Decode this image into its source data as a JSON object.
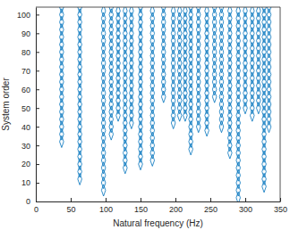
{
  "chart_data": {
    "type": "scatter",
    "xlabel": "Natural frequency (Hz)",
    "ylabel": "System order",
    "color": "#0072bd",
    "marker": "diamond",
    "xlim": [
      0,
      350
    ],
    "xticks": [
      0,
      50,
      100,
      150,
      200,
      250,
      300,
      350
    ],
    "ylim": [
      0,
      104
    ],
    "yticks": [
      0,
      10,
      20,
      30,
      40,
      50,
      60,
      70,
      80,
      90,
      100
    ],
    "x": [
      37,
      37,
      37,
      37,
      37,
      37,
      37,
      37,
      37,
      37,
      37,
      37,
      37,
      37,
      37,
      37,
      37,
      37,
      37,
      63,
      63,
      63,
      63,
      63,
      63,
      63,
      63,
      63,
      63,
      63,
      63,
      63,
      63,
      63,
      63,
      63,
      63,
      63,
      63,
      63,
      63,
      63,
      63,
      97,
      97,
      97,
      97,
      97,
      97,
      97,
      97,
      97,
      97,
      97,
      97,
      97,
      97,
      97,
      97,
      97,
      97,
      97,
      97,
      97,
      97,
      97,
      97,
      97,
      108,
      108,
      108,
      108,
      108,
      108,
      108,
      108,
      108,
      108,
      108,
      108,
      108,
      108,
      108,
      108,
      108,
      108,
      118,
      118,
      118,
      118,
      118,
      118,
      118,
      118,
      118,
      118,
      118,
      118,
      118,
      118,
      118,
      128,
      128,
      128,
      128,
      128,
      128,
      128,
      128,
      128,
      128,
      128,
      128,
      128,
      128,
      128,
      128,
      128,
      128,
      128,
      128,
      128,
      128,
      137,
      137,
      137,
      137,
      137,
      137,
      137,
      137,
      137,
      137,
      137,
      137,
      137,
      137,
      137,
      137,
      150,
      150,
      150,
      150,
      150,
      150,
      150,
      150,
      150,
      150,
      150,
      150,
      150,
      150,
      150,
      150,
      150,
      150,
      150,
      150,
      150,
      150,
      167,
      167,
      167,
      167,
      167,
      167,
      167,
      167,
      167,
      167,
      167,
      167,
      167,
      167,
      167,
      167,
      167,
      167,
      167,
      167,
      167,
      183,
      183,
      183,
      183,
      183,
      183,
      183,
      183,
      183,
      183,
      183,
      183,
      183,
      197,
      197,
      197,
      197,
      197,
      197,
      197,
      197,
      197,
      197,
      197,
      197,
      197,
      197,
      197,
      197,
      206,
      206,
      206,
      206,
      206,
      206,
      206,
      206,
      206,
      206,
      206,
      206,
      206,
      206,
      206,
      214,
      214,
      214,
      214,
      214,
      214,
      214,
      214,
      214,
      214,
      214,
      214,
      214,
      214,
      214,
      222,
      222,
      222,
      222,
      222,
      222,
      222,
      222,
      222,
      222,
      222,
      222,
      222,
      222,
      222,
      222,
      222,
      222,
      222,
      222,
      233,
      233,
      233,
      233,
      233,
      233,
      233,
      233,
      233,
      233,
      233,
      233,
      233,
      233,
      233,
      233,
      233,
      245,
      245,
      245,
      245,
      245,
      245,
      245,
      245,
      245,
      245,
      245,
      245,
      245,
      245,
      245,
      245,
      245,
      256,
      256,
      256,
      256,
      256,
      256,
      256,
      256,
      256,
      256,
      256,
      256,
      256,
      266,
      266,
      266,
      266,
      266,
      266,
      266,
      266,
      266,
      266,
      266,
      266,
      266,
      266,
      266,
      266,
      266,
      278,
      278,
      278,
      278,
      278,
      278,
      278,
      278,
      278,
      278,
      278,
      278,
      278,
      278,
      278,
      278,
      278,
      278,
      278,
      278,
      290,
      290,
      290,
      290,
      290,
      290,
      290,
      290,
      290,
      290,
      290,
      290,
      290,
      290,
      290,
      290,
      290,
      290,
      290,
      290,
      290,
      290,
      290,
      290,
      290,
      290,
      300,
      300,
      300,
      300,
      300,
      300,
      300,
      300,
      300,
      300,
      300,
      300,
      300,
      300,
      310,
      310,
      310,
      310,
      310,
      310,
      310,
      310,
      310,
      310,
      310,
      310,
      310,
      310,
      310,
      319,
      319,
      319,
      319,
      319,
      319,
      319,
      319,
      319,
      319,
      319,
      319,
      319,
      319,
      327,
      327,
      327,
      327,
      327,
      327,
      327,
      327,
      327,
      327,
      327,
      327,
      327,
      327,
      327,
      327,
      327,
      327,
      327,
      327,
      327,
      327,
      327,
      327,
      327,
      334,
      334,
      334,
      334,
      334,
      334,
      334,
      334,
      334,
      334,
      334,
      334,
      334,
      334,
      334,
      334,
      334
    ],
    "values": [
      32,
      36,
      40,
      44,
      48,
      52,
      56,
      60,
      64,
      68,
      72,
      76,
      80,
      84,
      88,
      92,
      96,
      100,
      104,
      12,
      16,
      20,
      24,
      28,
      32,
      36,
      40,
      44,
      48,
      52,
      56,
      60,
      64,
      68,
      72,
      76,
      80,
      84,
      88,
      92,
      96,
      100,
      104,
      6,
      10,
      14,
      18,
      22,
      26,
      30,
      34,
      38,
      42,
      46,
      50,
      54,
      58,
      62,
      66,
      70,
      74,
      78,
      82,
      86,
      90,
      94,
      98,
      102,
      36,
      40,
      44,
      48,
      52,
      56,
      60,
      64,
      68,
      72,
      76,
      80,
      84,
      88,
      92,
      96,
      100,
      104,
      46,
      50,
      54,
      58,
      62,
      66,
      70,
      74,
      78,
      82,
      86,
      90,
      94,
      98,
      102,
      18,
      22,
      26,
      30,
      34,
      38,
      42,
      46,
      50,
      54,
      58,
      62,
      66,
      70,
      74,
      78,
      82,
      86,
      90,
      94,
      98,
      102,
      42,
      46,
      50,
      54,
      58,
      62,
      66,
      70,
      74,
      78,
      82,
      86,
      90,
      94,
      98,
      102,
      20,
      24,
      28,
      32,
      36,
      40,
      44,
      48,
      52,
      56,
      60,
      64,
      68,
      72,
      76,
      80,
      84,
      88,
      92,
      96,
      100,
      104,
      22,
      26,
      30,
      34,
      38,
      42,
      46,
      50,
      54,
      58,
      62,
      66,
      70,
      74,
      78,
      82,
      86,
      90,
      94,
      98,
      102,
      56,
      60,
      64,
      68,
      72,
      76,
      80,
      84,
      88,
      92,
      96,
      100,
      104,
      42,
      46,
      50,
      54,
      58,
      62,
      66,
      70,
      74,
      78,
      82,
      86,
      90,
      94,
      98,
      102,
      46,
      50,
      54,
      58,
      62,
      66,
      70,
      74,
      78,
      82,
      86,
      90,
      94,
      98,
      102,
      46,
      50,
      54,
      58,
      62,
      66,
      70,
      74,
      78,
      82,
      86,
      90,
      94,
      98,
      102,
      28,
      32,
      36,
      40,
      44,
      48,
      52,
      56,
      60,
      64,
      68,
      72,
      76,
      80,
      84,
      88,
      92,
      96,
      100,
      104,
      40,
      44,
      48,
      52,
      56,
      60,
      64,
      68,
      72,
      76,
      80,
      84,
      88,
      92,
      96,
      100,
      104,
      38,
      42,
      46,
      50,
      54,
      58,
      62,
      66,
      70,
      74,
      78,
      82,
      86,
      90,
      94,
      98,
      102,
      56,
      60,
      64,
      68,
      72,
      76,
      80,
      84,
      88,
      92,
      96,
      100,
      104,
      40,
      44,
      48,
      52,
      56,
      60,
      64,
      68,
      72,
      76,
      80,
      84,
      88,
      92,
      96,
      100,
      104,
      26,
      30,
      34,
      38,
      42,
      46,
      50,
      54,
      58,
      62,
      66,
      70,
      74,
      78,
      82,
      86,
      90,
      94,
      98,
      102,
      2,
      6,
      10,
      14,
      18,
      22,
      26,
      30,
      34,
      38,
      42,
      46,
      50,
      54,
      58,
      62,
      66,
      70,
      74,
      78,
      82,
      86,
      90,
      94,
      98,
      102,
      50,
      54,
      58,
      62,
      66,
      70,
      74,
      78,
      82,
      86,
      90,
      94,
      98,
      102,
      46,
      50,
      54,
      58,
      62,
      66,
      70,
      74,
      78,
      82,
      86,
      90,
      94,
      98,
      102,
      50,
      54,
      58,
      62,
      66,
      70,
      74,
      78,
      82,
      86,
      90,
      94,
      98,
      102,
      8,
      12,
      16,
      20,
      24,
      28,
      32,
      36,
      40,
      44,
      48,
      52,
      56,
      60,
      64,
      68,
      72,
      76,
      80,
      84,
      88,
      92,
      96,
      100,
      104,
      40,
      44,
      48,
      52,
      56,
      60,
      64,
      68,
      72,
      76,
      80,
      84,
      88,
      92,
      96,
      100,
      104
    ]
  }
}
